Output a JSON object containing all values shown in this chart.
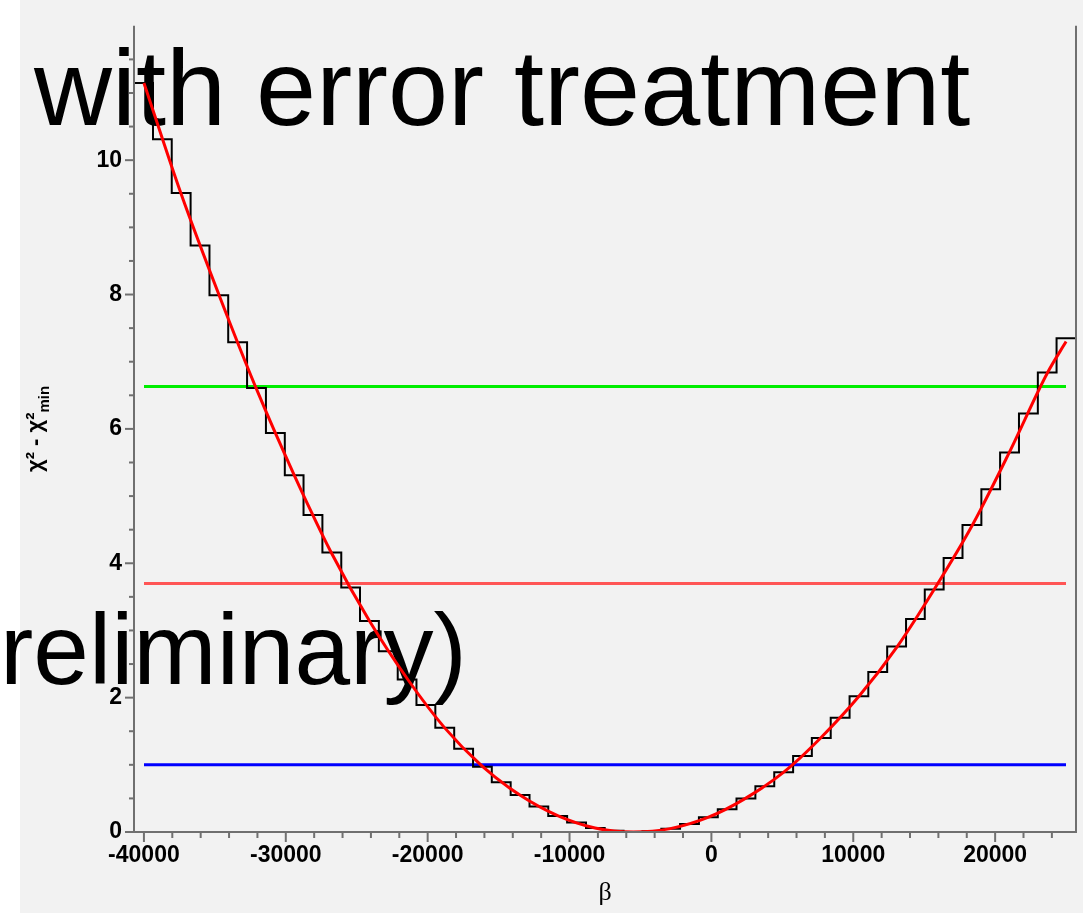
{
  "chart_data": {
    "type": "histogram",
    "xlabel": "β",
    "ylabel": "χ² - χ²$_{min}$",
    "bins": [
      -40690,
      -39360,
      -38040,
      -36710,
      -35380,
      -34060,
      -32730,
      -31400,
      -30070,
      -28750,
      -27420,
      -26090,
      -24770,
      -23440,
      -22110,
      -20790,
      -19460,
      -18130,
      -16800,
      -15480,
      -14150,
      -12820,
      -11500,
      -10170,
      -8840,
      -7520,
      -6190,
      -4860,
      -3530,
      -2210,
      -880,
      450,
      1770,
      3100,
      4430,
      5760,
      7080,
      8410,
      9740,
      11060,
      12390,
      13720,
      15040,
      16370,
      17700,
      19030,
      20350,
      21680,
      23010,
      24330,
      25660
    ],
    "values": [
      11.15,
      10.31,
      9.51,
      8.73,
      7.99,
      7.29,
      6.61,
      5.94,
      5.31,
      4.72,
      4.16,
      3.64,
      3.14,
      2.69,
      2.27,
      1.89,
      1.55,
      1.24,
      0.97,
      0.74,
      0.55,
      0.38,
      0.24,
      0.14,
      0.06,
      0.02,
      0.0,
      0.01,
      0.05,
      0.12,
      0.22,
      0.34,
      0.5,
      0.68,
      0.89,
      1.13,
      1.4,
      1.7,
      2.02,
      2.38,
      2.76,
      3.17,
      3.61,
      4.08,
      4.57,
      5.1,
      5.65,
      6.23,
      6.84,
      7.35
    ],
    "color": "#000000",
    "series": [
      {
        "type": "line",
        "color": "#ff0000",
        "x": [
          -40000,
          -37400,
          -34700,
          -32100,
          -29400,
          -26800,
          -24100,
          -21400,
          -18800,
          -16100,
          -13500,
          -10800,
          -8200,
          -5500,
          -2900,
          -200,
          2400,
          5100,
          7700,
          10400,
          13100,
          15700,
          18400,
          21000,
          23700,
          25000
        ],
        "values": [
          11.15,
          9.51,
          7.99,
          6.61,
          5.31,
          4.16,
          3.14,
          2.27,
          1.55,
          0.97,
          0.55,
          0.24,
          0.06,
          0.0,
          0.05,
          0.22,
          0.5,
          0.89,
          1.4,
          2.02,
          2.76,
          3.61,
          4.57,
          5.65,
          6.84,
          7.3
        ]
      }
    ],
    "ref_lines": [
      {
        "axis": "y",
        "value": 6.63,
        "color": "#00ee00"
      },
      {
        "axis": "y",
        "value": 3.7,
        "color": "#ff5555"
      },
      {
        "axis": "y",
        "value": 1,
        "color": "#0000ff"
      }
    ],
    "xlim": [
      -40700,
      25700
    ],
    "xticks": [
      -40000,
      {
        "value": -38000,
        "label": null
      },
      {
        "value": -36000,
        "label": null
      },
      {
        "value": -34000,
        "label": null
      },
      {
        "value": -32000,
        "label": null
      },
      -30000,
      {
        "value": -28000,
        "label": null
      },
      {
        "value": -26000,
        "label": null
      },
      {
        "value": -24000,
        "label": null
      },
      {
        "value": -22000,
        "label": null
      },
      -20000,
      {
        "value": -18000,
        "label": null
      },
      {
        "value": -16000,
        "label": null
      },
      {
        "value": -14000,
        "label": null
      },
      {
        "value": -12000,
        "label": null
      },
      -10000,
      {
        "value": -8000,
        "label": null
      },
      {
        "value": -6000,
        "label": null
      },
      {
        "value": -4000,
        "label": null
      },
      {
        "value": -2000,
        "label": null
      },
      0,
      {
        "value": 2000,
        "label": null
      },
      {
        "value": 4000,
        "label": null
      },
      {
        "value": 6000,
        "label": null
      },
      {
        "value": 8000,
        "label": null
      },
      10000,
      {
        "value": 12000,
        "label": null
      },
      {
        "value": 14000,
        "label": null
      },
      {
        "value": 16000,
        "label": null
      },
      {
        "value": 18000,
        "label": null
      },
      20000,
      {
        "value": 22000,
        "label": null
      },
      {
        "value": 24000,
        "label": null
      }
    ],
    "ylim": [
      0,
      12
    ],
    "yticks": [
      0,
      {
        "value": 0.5,
        "label": null
      },
      {
        "value": 1,
        "label": null
      },
      {
        "value": 1.5,
        "label": null
      },
      2,
      {
        "value": 2.5,
        "label": null
      },
      {
        "value": 3,
        "label": null
      },
      {
        "value": 3.5,
        "label": null
      },
      4,
      {
        "value": 4.5,
        "label": null
      },
      {
        "value": 5,
        "label": null
      },
      {
        "value": 5.5,
        "label": null
      },
      6,
      {
        "value": 6.5,
        "label": null
      },
      {
        "value": 7,
        "label": null
      },
      {
        "value": 7.5,
        "label": null
      },
      8,
      {
        "value": 8.5,
        "label": null
      },
      {
        "value": 9,
        "label": null
      },
      {
        "value": 9.5,
        "label": null
      },
      10,
      {
        "value": 10.5,
        "label": null
      },
      {
        "value": 11,
        "label": null
      },
      {
        "value": 11.5,
        "label": null
      }
    ],
    "grid": false,
    "legend": false,
    "annotations": [
      "with error treatment",
      "reliminary)"
    ]
  }
}
